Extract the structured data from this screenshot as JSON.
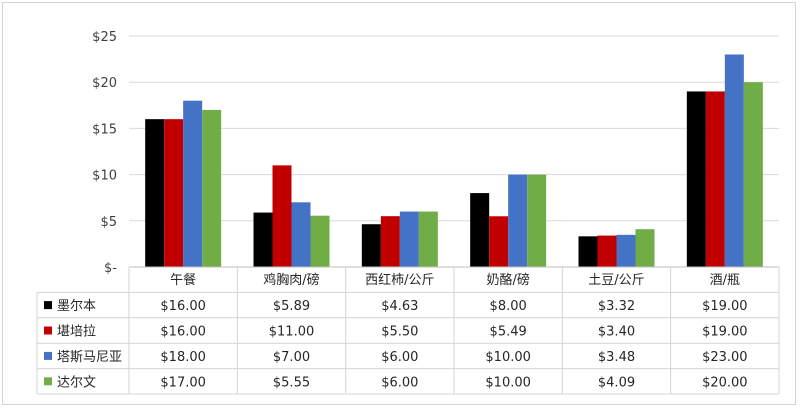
{
  "chart_data": {
    "type": "bar",
    "title": "",
    "xlabel": "",
    "ylabel": "",
    "categories": [
      "午餐",
      "鸡胸肉/磅",
      "西红柿/公斤",
      "奶酪/磅",
      "土豆/公斤",
      "酒/瓶"
    ],
    "ylim": [
      0,
      25
    ],
    "yticks": [
      {
        "value": 0,
        "label": "$-"
      },
      {
        "value": 5,
        "label": "$5"
      },
      {
        "value": 10,
        "label": "$10"
      },
      {
        "value": 15,
        "label": "$15"
      },
      {
        "value": 20,
        "label": "$20"
      },
      {
        "value": 25,
        "label": "$25"
      }
    ],
    "grid": true,
    "legend": "data-table-left",
    "series": [
      {
        "name": "墨尔本",
        "color": "#000000",
        "values": [
          16.0,
          5.89,
          4.63,
          8.0,
          3.32,
          19.0
        ],
        "labels": [
          "$16.00",
          "$5.89",
          "$4.63",
          "$8.00",
          "$3.32",
          "$19.00"
        ]
      },
      {
        "name": "堪培拉",
        "color": "#c00000",
        "values": [
          16.0,
          11.0,
          5.5,
          5.49,
          3.4,
          19.0
        ],
        "labels": [
          "$16.00",
          "$11.00",
          "$5.50",
          "$5.49",
          "$3.40",
          "$19.00"
        ]
      },
      {
        "name": "塔斯马尼亚",
        "color": "#4472c4",
        "values": [
          18.0,
          7.0,
          6.0,
          10.0,
          3.48,
          23.0
        ],
        "labels": [
          "$18.00",
          "$7.00",
          "$6.00",
          "$10.00",
          "$3.48",
          "$23.00"
        ]
      },
      {
        "name": "达尔文",
        "color": "#70ad47",
        "values": [
          17.0,
          5.55,
          6.0,
          10.0,
          4.09,
          20.0
        ],
        "labels": [
          "$17.00",
          "$5.55",
          "$6.00",
          "$10.00",
          "$4.09",
          "$20.00"
        ]
      }
    ]
  }
}
